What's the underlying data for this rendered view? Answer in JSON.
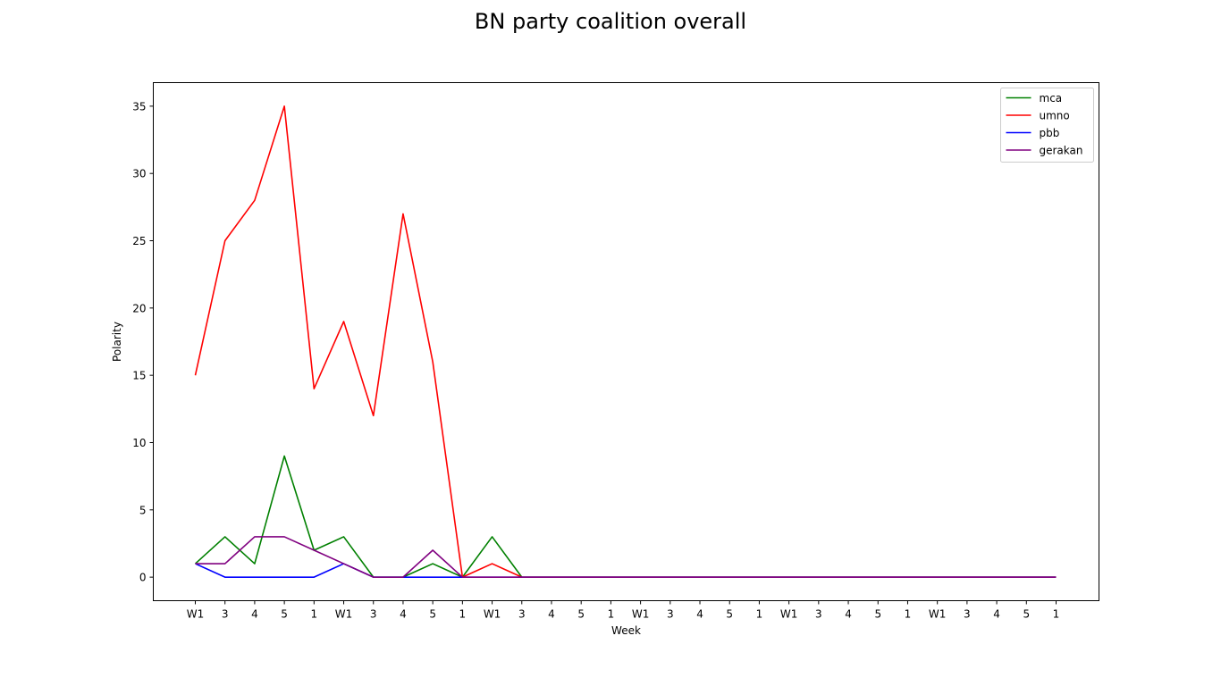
{
  "chart_data": {
    "type": "line",
    "title": "BN party coalition overall",
    "xlabel": "Week",
    "ylabel": "Polarity",
    "categories": [
      "W1",
      "3",
      "4",
      "5",
      "1",
      "W1",
      "3",
      "4",
      "5",
      "1",
      "W1",
      "3",
      "4",
      "5",
      "1",
      "W1",
      "3",
      "4",
      "5",
      "1",
      "W1",
      "3",
      "4",
      "5",
      "1",
      "W1",
      "3",
      "4",
      "5",
      "1"
    ],
    "ylim": [
      -1.75,
      36.75
    ],
    "yticks": [
      0,
      5,
      10,
      15,
      20,
      25,
      30,
      35
    ],
    "grid": false,
    "legend_position": "top-right",
    "series": [
      {
        "name": "mca",
        "color": "#008000",
        "values": [
          1,
          3,
          1,
          9,
          2,
          3,
          0,
          0,
          1,
          0,
          3,
          0,
          0,
          0,
          0,
          0,
          0,
          0,
          0,
          0,
          0,
          0,
          0,
          0,
          0,
          0,
          0,
          0,
          0,
          0
        ]
      },
      {
        "name": "umno",
        "color": "#ff0000",
        "values": [
          15,
          25,
          28,
          35,
          14,
          19,
          12,
          27,
          16,
          0,
          1,
          0,
          0,
          0,
          0,
          0,
          0,
          0,
          0,
          0,
          0,
          0,
          0,
          0,
          0,
          0,
          0,
          0,
          0,
          0
        ]
      },
      {
        "name": "pbb",
        "color": "#0000ff",
        "values": [
          1,
          0,
          0,
          0,
          0,
          1,
          0,
          0,
          0,
          0,
          0,
          0,
          0,
          0,
          0,
          0,
          0,
          0,
          0,
          0,
          0,
          0,
          0,
          0,
          0,
          0,
          0,
          0,
          0,
          0
        ]
      },
      {
        "name": "gerakan",
        "color": "#800080",
        "values": [
          1,
          1,
          3,
          3,
          2,
          1,
          0,
          0,
          2,
          0,
          0,
          0,
          0,
          0,
          0,
          0,
          0,
          0,
          0,
          0,
          0,
          0,
          0,
          0,
          0,
          0,
          0,
          0,
          0,
          0
        ]
      }
    ]
  }
}
